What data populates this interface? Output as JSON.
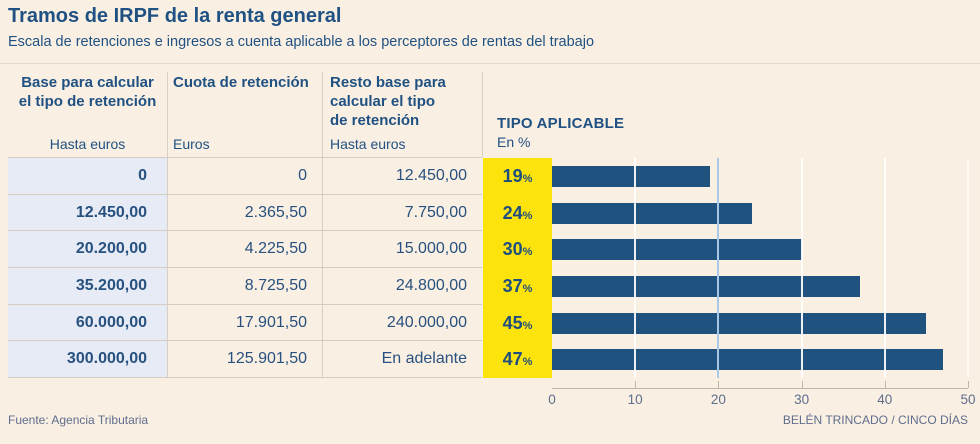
{
  "header": {
    "title": "Tramos de IRPF de la renta general",
    "subtitle": "Escala de retenciones e ingresos a cuenta aplicable a los perceptores de rentas del trabajo"
  },
  "table": {
    "columns": [
      {
        "title": "Base para calcular el tipo de retención",
        "unit": "Hasta euros"
      },
      {
        "title": "Cuota de retención",
        "unit": "Euros"
      },
      {
        "title": "Resto base para calcular el tipo de retención",
        "unit": "Hasta euros"
      }
    ],
    "rows": [
      {
        "base": "0",
        "cuota": "0",
        "resto": "12.450,00"
      },
      {
        "base": "12.450,00",
        "cuota": "2.365,50",
        "resto": "7.750,00"
      },
      {
        "base": "20.200,00",
        "cuota": "4.225,50",
        "resto": "15.000,00"
      },
      {
        "base": "35.200,00",
        "cuota": "8.725,50",
        "resto": "24.800,00"
      },
      {
        "base": "60.000,00",
        "cuota": "17.901,50",
        "resto": "240.000,00"
      },
      {
        "base": "300.000,00",
        "cuota": "125.901,50",
        "resto": "En adelante"
      }
    ]
  },
  "chart": {
    "header": "TIPO APLICABLE",
    "unit": "En %",
    "percent_sign": "%"
  },
  "chart_data": {
    "type": "bar",
    "orientation": "horizontal",
    "title": "TIPO APLICABLE",
    "xlabel": "En %",
    "categories": [
      "0",
      "12.450,00",
      "20.200,00",
      "35.200,00",
      "60.000,00",
      "300.000,00"
    ],
    "values": [
      19,
      24,
      30,
      37,
      45,
      47
    ],
    "xlim": [
      0,
      50
    ],
    "x_ticks": [
      0,
      10,
      20,
      30,
      40,
      50
    ],
    "grid": true,
    "legend": "none",
    "bar_color": "#20527F",
    "rate_panel_color": "#FCE30B",
    "accent_text_color": "#1F5182",
    "background_color": "#FAEFE3",
    "first_column_color": "#E7EBF6"
  },
  "footer": {
    "source": "Fuente: Agencia Tributaria",
    "credit": "BELÉN TRINCADO / CINCO DÍAS"
  }
}
